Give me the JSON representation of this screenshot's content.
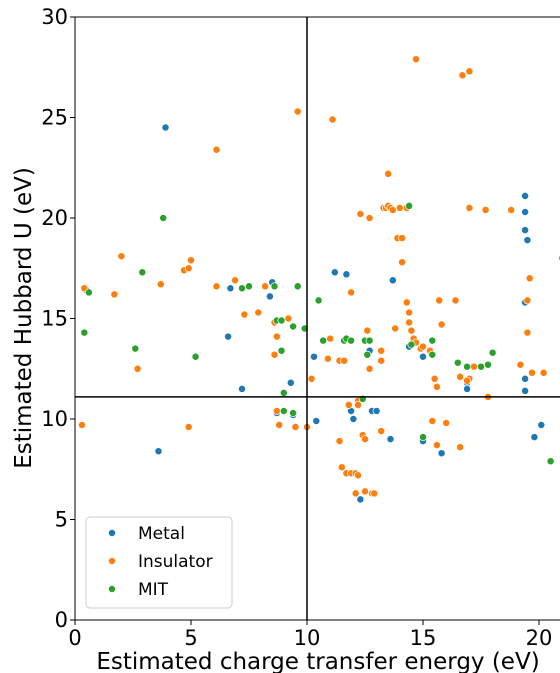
{
  "chart_data": {
    "type": "scatter",
    "title": "",
    "xlabel": "Estimated charge transfer energy (eV)",
    "ylabel": "Estimated Hubbard U (eV)",
    "xlim": [
      0,
      21
    ],
    "ylim": [
      0,
      30
    ],
    "xticks": [
      "0",
      "5",
      "10",
      "15",
      "20"
    ],
    "yticks": [
      "0",
      "5",
      "10",
      "15",
      "20",
      "25",
      "30"
    ],
    "grid": false,
    "legend_position": "lower-left",
    "reference_lines": {
      "x": 10,
      "y": 11.1
    },
    "series": [
      {
        "name": "Metal",
        "color": "#1f77b4",
        "points": [
          [
            0.5,
            16.4
          ],
          [
            3.9,
            24.5
          ],
          [
            3.6,
            8.4
          ],
          [
            6.6,
            14.1
          ],
          [
            7.2,
            11.5
          ],
          [
            6.7,
            16.5
          ],
          [
            8.4,
            16.1
          ],
          [
            8.5,
            16.8
          ],
          [
            8.7,
            10.3
          ],
          [
            9.3,
            11.8
          ],
          [
            9.4,
            10.2
          ],
          [
            10.3,
            13.1
          ],
          [
            10.4,
            9.9
          ],
          [
            11.2,
            17.3
          ],
          [
            11.7,
            17.2
          ],
          [
            11.9,
            10.4
          ],
          [
            12.0,
            10.0
          ],
          [
            12.3,
            6.0
          ],
          [
            12.7,
            13.4
          ],
          [
            12.8,
            10.4
          ],
          [
            13.0,
            10.4
          ],
          [
            13.6,
            9.0
          ],
          [
            13.7,
            16.9
          ],
          [
            14.4,
            13.6
          ],
          [
            15.0,
            8.9
          ],
          [
            15.0,
            13.1
          ],
          [
            15.8,
            8.3
          ],
          [
            16.9,
            11.8
          ],
          [
            16.9,
            11.5
          ],
          [
            19.4,
            21.1
          ],
          [
            19.4,
            20.3
          ],
          [
            19.4,
            19.4
          ],
          [
            19.5,
            18.9
          ],
          [
            19.4,
            15.8
          ],
          [
            19.4,
            12.0
          ],
          [
            19.4,
            11.4
          ],
          [
            19.8,
            9.1
          ],
          [
            20.1,
            9.7
          ]
        ]
      },
      {
        "name": "Insulator",
        "color": "#ff7f0e",
        "points": [
          [
            0.4,
            16.5
          ],
          [
            1.7,
            16.2
          ],
          [
            2.0,
            18.1
          ],
          [
            0.3,
            9.7
          ],
          [
            3.7,
            16.7
          ],
          [
            4.7,
            17.4
          ],
          [
            4.9,
            17.5
          ],
          [
            5.0,
            17.9
          ],
          [
            4.9,
            9.6
          ],
          [
            2.7,
            12.5
          ],
          [
            6.1,
            23.4
          ],
          [
            6.1,
            16.6
          ],
          [
            6.9,
            16.9
          ],
          [
            7.3,
            15.2
          ],
          [
            7.9,
            15.3
          ],
          [
            8.2,
            16.6
          ],
          [
            8.6,
            14.8
          ],
          [
            8.7,
            14.1
          ],
          [
            8.6,
            13.2
          ],
          [
            8.7,
            10.4
          ],
          [
            8.8,
            9.7
          ],
          [
            9.2,
            15.0
          ],
          [
            9.6,
            25.3
          ],
          [
            9.5,
            9.6
          ],
          [
            10.0,
            9.6
          ],
          [
            10.2,
            12.0
          ],
          [
            11.1,
            24.9
          ],
          [
            10.9,
            13.0
          ],
          [
            11.0,
            14.0
          ],
          [
            11.4,
            12.9
          ],
          [
            11.6,
            12.9
          ],
          [
            11.8,
            10.7
          ],
          [
            11.9,
            16.3
          ],
          [
            11.4,
            8.9
          ],
          [
            11.5,
            7.6
          ],
          [
            11.7,
            7.3
          ],
          [
            11.9,
            7.3
          ],
          [
            12.1,
            7.3
          ],
          [
            12.2,
            7.2
          ],
          [
            12.1,
            6.3
          ],
          [
            12.2,
            10.9
          ],
          [
            12.2,
            10.7
          ],
          [
            12.3,
            20.2
          ],
          [
            12.4,
            9.2
          ],
          [
            12.5,
            9.0
          ],
          [
            12.5,
            6.4
          ],
          [
            12.6,
            14.4
          ],
          [
            12.7,
            12.5
          ],
          [
            12.7,
            20.0
          ],
          [
            12.8,
            6.3
          ],
          [
            12.9,
            6.3
          ],
          [
            13.2,
            13.4
          ],
          [
            13.2,
            12.9
          ],
          [
            13.2,
            9.4
          ],
          [
            13.3,
            20.5
          ],
          [
            13.4,
            20.5
          ],
          [
            13.5,
            22.2
          ],
          [
            13.5,
            20.6
          ],
          [
            13.6,
            20.5
          ],
          [
            13.7,
            20.4
          ],
          [
            13.8,
            14.5
          ],
          [
            13.9,
            19.0
          ],
          [
            14.0,
            20.5
          ],
          [
            14.1,
            19.0
          ],
          [
            14.1,
            17.8
          ],
          [
            14.3,
            20.5
          ],
          [
            14.3,
            15.8
          ],
          [
            14.4,
            15.3
          ],
          [
            14.4,
            14.8
          ],
          [
            14.5,
            14.4
          ],
          [
            14.6,
            14.0
          ],
          [
            14.7,
            27.9
          ],
          [
            14.7,
            13.8
          ],
          [
            14.9,
            13.5
          ],
          [
            15.0,
            13.6
          ],
          [
            15.3,
            13.4
          ],
          [
            15.5,
            12.0
          ],
          [
            15.6,
            11.6
          ],
          [
            15.8,
            14.7
          ],
          [
            15.7,
            15.9
          ],
          [
            15.4,
            9.9
          ],
          [
            15.6,
            8.7
          ],
          [
            16.0,
            9.8
          ],
          [
            16.4,
            15.9
          ],
          [
            16.6,
            8.6
          ],
          [
            16.6,
            12.1
          ],
          [
            16.7,
            27.1
          ],
          [
            17.0,
            27.3
          ],
          [
            17.0,
            12.0
          ],
          [
            17.2,
            12.6
          ],
          [
            16.9,
            11.9
          ],
          [
            17.0,
            20.5
          ],
          [
            17.7,
            20.4
          ],
          [
            17.8,
            11.1
          ],
          [
            18.8,
            20.4
          ],
          [
            19.2,
            12.7
          ],
          [
            19.6,
            17.0
          ],
          [
            19.5,
            15.9
          ],
          [
            19.5,
            14.3
          ],
          [
            19.7,
            12.3
          ],
          [
            20.2,
            12.3
          ],
          [
            21.0,
            18.0
          ]
        ]
      },
      {
        "name": "MIT",
        "color": "#2ca02c",
        "points": [
          [
            0.6,
            16.3
          ],
          [
            0.4,
            14.3
          ],
          [
            2.6,
            13.5
          ],
          [
            2.9,
            17.3
          ],
          [
            3.8,
            20.0
          ],
          [
            5.2,
            13.1
          ],
          [
            7.2,
            16.5
          ],
          [
            7.5,
            16.6
          ],
          [
            7.2,
            16.5
          ],
          [
            8.6,
            16.6
          ],
          [
            8.7,
            14.9
          ],
          [
            8.9,
            14.9
          ],
          [
            8.9,
            13.4
          ],
          [
            9.0,
            11.3
          ],
          [
            9.0,
            10.4
          ],
          [
            9.4,
            10.3
          ],
          [
            9.4,
            14.6
          ],
          [
            9.6,
            16.6
          ],
          [
            9.9,
            14.5
          ],
          [
            10.5,
            15.9
          ],
          [
            10.7,
            13.9
          ],
          [
            11.6,
            13.9
          ],
          [
            11.7,
            14.0
          ],
          [
            11.9,
            13.9
          ],
          [
            12.5,
            13.9
          ],
          [
            12.7,
            13.9
          ],
          [
            12.6,
            13.2
          ],
          [
            12.4,
            11.0
          ],
          [
            14.4,
            20.6
          ],
          [
            14.5,
            13.7
          ],
          [
            15.0,
            9.1
          ],
          [
            15.4,
            13.2
          ],
          [
            15.4,
            13.9
          ],
          [
            16.5,
            12.8
          ],
          [
            16.9,
            12.6
          ],
          [
            17.5,
            12.6
          ],
          [
            17.8,
            12.7
          ],
          [
            18.0,
            13.3
          ],
          [
            20.5,
            7.9
          ]
        ]
      }
    ]
  }
}
